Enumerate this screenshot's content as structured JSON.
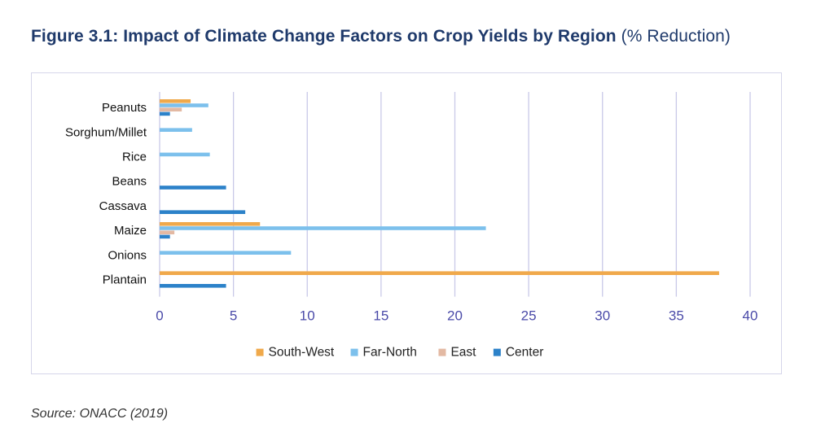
{
  "figure": {
    "title": "Figure 3.1: Impact of Climate Change Factors on Crop Yields by Region",
    "title_suffix": "(% Reduction)",
    "source": "Source: ONACC (2019)"
  },
  "colors": {
    "South-West": "#f0a94b",
    "Far-North": "#7cc0ec",
    "East": "#e3b9a3",
    "Center": "#2c82c9",
    "grid": "#c9c9e8",
    "axis_tick": "#4a4aa8"
  },
  "chart_data": {
    "type": "bar",
    "orientation": "horizontal",
    "title": "Figure 3.1: Impact of Climate Change Factors on Crop Yields by Region (% Reduction)",
    "xlabel": "",
    "ylabel": "",
    "xlim": [
      0,
      40
    ],
    "xticks": [
      0,
      5,
      10,
      15,
      20,
      25,
      30,
      35,
      40
    ],
    "grid": true,
    "legend_position": "bottom",
    "categories": [
      "Peanuts",
      "Sorghum/Millet",
      "Rice",
      "Beans",
      "Cassava",
      "Maize",
      "Onions",
      "Plantain"
    ],
    "series": [
      {
        "name": "South-West",
        "values": [
          2.1,
          null,
          null,
          null,
          null,
          6.8,
          null,
          37.9
        ]
      },
      {
        "name": "Far-North",
        "values": [
          3.3,
          2.2,
          3.4,
          null,
          null,
          22.1,
          8.9,
          null
        ]
      },
      {
        "name": "East",
        "values": [
          1.5,
          null,
          null,
          null,
          null,
          1.0,
          null,
          null
        ]
      },
      {
        "name": "Center",
        "values": [
          0.7,
          null,
          null,
          4.5,
          5.8,
          0.7,
          null,
          4.5
        ]
      }
    ]
  }
}
